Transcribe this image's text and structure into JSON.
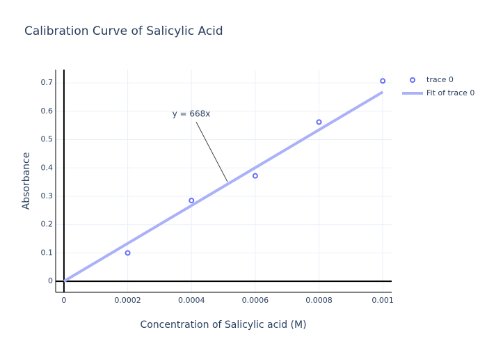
{
  "chart_data": {
    "type": "scatter",
    "title": "Calibration Curve of Salicylic Acid",
    "x_label": "Concentration of Salicylic acid (M)",
    "y_label": "Absorbance",
    "series": [
      {
        "name": "trace 0",
        "type": "scatter",
        "color": "#636efa",
        "x": [
          0.0002,
          0.0004,
          0.0006,
          0.0008,
          0.001
        ],
        "values": [
          0.1,
          0.285,
          0.372,
          0.562,
          0.707
        ]
      },
      {
        "name": "Fit of trace 0",
        "type": "line",
        "color": "#abb1f8",
        "x": [
          0,
          0.001
        ],
        "values": [
          0,
          0.668
        ]
      }
    ],
    "annotation": {
      "text": "y = 668x",
      "x": 0.000513,
      "y": 0.351
    },
    "xlim": [
      -2.6e-05,
      0.001028
    ],
    "ylim": [
      -0.039,
      0.747
    ],
    "xticks": [
      0,
      0.0002,
      0.0004,
      0.0006,
      0.0008,
      0.001
    ],
    "yticks": [
      0,
      0.1,
      0.2,
      0.3,
      0.4,
      0.5,
      0.6,
      0.7
    ],
    "grid": true,
    "legend": "top-right"
  }
}
